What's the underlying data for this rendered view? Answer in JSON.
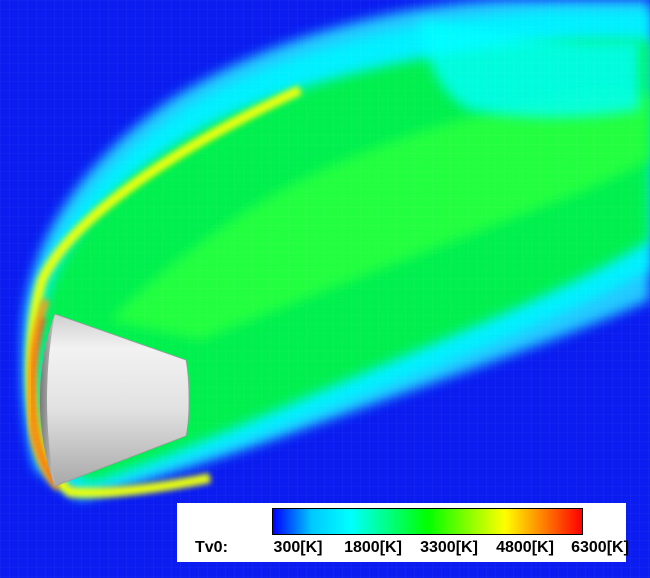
{
  "legend": {
    "variable_label": "Tv0:",
    "ticks": [
      "300[K]",
      "1800[K]",
      "3300[K]",
      "4800[K]",
      "6300[K]"
    ],
    "colormap": [
      "#0000ff",
      "#00c8ff",
      "#00ffff",
      "#00ff80",
      "#00ff00",
      "#80ff00",
      "#ffff00",
      "#ff8000",
      "#ff0000"
    ]
  }
}
